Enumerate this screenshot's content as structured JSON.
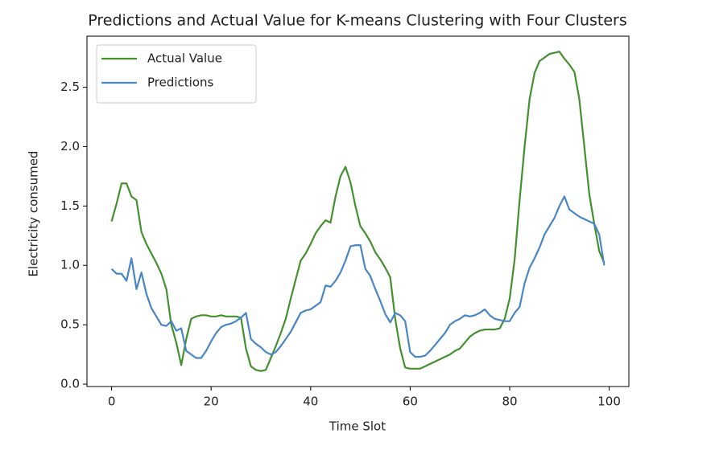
{
  "chart_data": {
    "type": "line",
    "title": "Predictions and Actual Value for K-means Clustering with Four Clusters",
    "xlabel": "Time Slot",
    "ylabel": "Electricity consumed",
    "x": [
      0,
      1,
      2,
      3,
      4,
      5,
      6,
      7,
      8,
      9,
      10,
      11,
      12,
      13,
      14,
      15,
      16,
      17,
      18,
      19,
      20,
      21,
      22,
      23,
      24,
      25,
      26,
      27,
      28,
      29,
      30,
      31,
      32,
      33,
      34,
      35,
      36,
      37,
      38,
      39,
      40,
      41,
      42,
      43,
      44,
      45,
      46,
      47,
      48,
      49,
      50,
      51,
      52,
      53,
      54,
      55,
      56,
      57,
      58,
      59,
      60,
      61,
      62,
      63,
      64,
      65,
      66,
      67,
      68,
      69,
      70,
      71,
      72,
      73,
      74,
      75,
      76,
      77,
      78,
      79,
      80,
      81,
      82,
      83,
      84,
      85,
      86,
      87,
      88,
      89,
      90,
      91,
      92,
      93,
      94,
      95,
      96,
      97,
      98,
      99
    ],
    "series": [
      {
        "name": "Actual Value",
        "color": "#43902f",
        "values": [
          1.37,
          1.52,
          1.69,
          1.69,
          1.58,
          1.55,
          1.28,
          1.18,
          1.1,
          1.02,
          0.93,
          0.8,
          0.5,
          0.35,
          0.16,
          0.38,
          0.55,
          0.57,
          0.58,
          0.58,
          0.57,
          0.57,
          0.58,
          0.57,
          0.57,
          0.57,
          0.56,
          0.3,
          0.15,
          0.12,
          0.11,
          0.12,
          0.22,
          0.32,
          0.43,
          0.55,
          0.72,
          0.88,
          1.04,
          1.1,
          1.18,
          1.27,
          1.33,
          1.38,
          1.36,
          1.58,
          1.75,
          1.83,
          1.7,
          1.5,
          1.33,
          1.27,
          1.2,
          1.11,
          1.05,
          0.98,
          0.9,
          0.55,
          0.3,
          0.14,
          0.13,
          0.13,
          0.13,
          0.15,
          0.17,
          0.19,
          0.21,
          0.23,
          0.25,
          0.28,
          0.3,
          0.35,
          0.4,
          0.43,
          0.45,
          0.46,
          0.46,
          0.46,
          0.47,
          0.55,
          0.72,
          1.05,
          1.55,
          2.0,
          2.4,
          2.62,
          2.72,
          2.75,
          2.78,
          2.79,
          2.8,
          2.74,
          2.69,
          2.63,
          2.4,
          2.0,
          1.6,
          1.35,
          1.12,
          1.02
        ]
      },
      {
        "name": "Predictions",
        "color": "#4a86c5",
        "values": [
          0.97,
          0.93,
          0.93,
          0.87,
          1.06,
          0.8,
          0.94,
          0.76,
          0.64,
          0.57,
          0.5,
          0.49,
          0.53,
          0.45,
          0.47,
          0.28,
          0.25,
          0.22,
          0.22,
          0.28,
          0.36,
          0.43,
          0.48,
          0.5,
          0.51,
          0.53,
          0.56,
          0.6,
          0.38,
          0.34,
          0.31,
          0.27,
          0.25,
          0.27,
          0.32,
          0.38,
          0.44,
          0.52,
          0.6,
          0.62,
          0.63,
          0.66,
          0.69,
          0.83,
          0.82,
          0.87,
          0.94,
          1.04,
          1.16,
          1.17,
          1.17,
          0.97,
          0.91,
          0.8,
          0.7,
          0.59,
          0.52,
          0.6,
          0.58,
          0.53,
          0.27,
          0.23,
          0.23,
          0.24,
          0.28,
          0.33,
          0.38,
          0.43,
          0.5,
          0.53,
          0.55,
          0.58,
          0.57,
          0.58,
          0.6,
          0.63,
          0.58,
          0.55,
          0.54,
          0.53,
          0.53,
          0.6,
          0.65,
          0.85,
          0.98,
          1.06,
          1.15,
          1.26,
          1.33,
          1.4,
          1.5,
          1.58,
          1.47,
          1.44,
          1.41,
          1.39,
          1.37,
          1.35,
          1.26,
          1.0
        ]
      }
    ],
    "xlim": [
      -4.95,
      103.95
    ],
    "xticks": [
      0,
      20,
      40,
      60,
      80,
      100
    ],
    "ylim": [
      -0.02,
      2.93
    ],
    "yticks": [
      {
        "value": 0,
        "label": "0.0"
      },
      0.5,
      {
        "value": 1,
        "label": "1.0"
      },
      1.5,
      {
        "value": 2,
        "label": "2.0"
      },
      2.5
    ],
    "legend": "upper left"
  }
}
